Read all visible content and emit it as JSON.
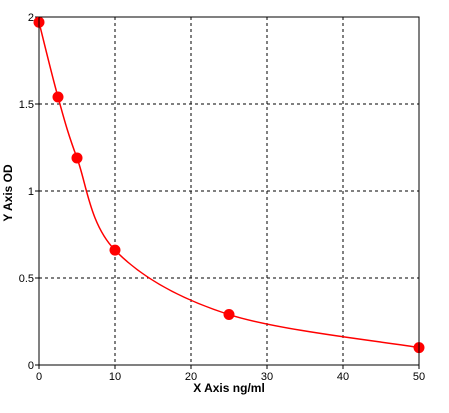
{
  "chart_data": {
    "type": "scatter",
    "title": "",
    "xlabel": "X Axis ng/ml",
    "ylabel": "Y Axis OD",
    "xlim": [
      0,
      50
    ],
    "ylim": [
      0,
      2
    ],
    "x_ticks": [
      0,
      10,
      20,
      30,
      40,
      50
    ],
    "x_tick_labels": [
      "0",
      "10",
      "20",
      "30",
      "40",
      "50"
    ],
    "y_ticks": [
      0,
      0.5,
      1,
      1.5,
      2
    ],
    "y_tick_labels": [
      "0",
      "0.5",
      "1",
      "1.5",
      "2"
    ],
    "grid": true,
    "legend": "none",
    "series": [
      {
        "x": [
          0,
          2.5,
          5,
          10,
          25,
          50
        ],
        "y": [
          1.97,
          1.54,
          1.19,
          0.66,
          0.29,
          0.1
        ],
        "color": "#ff0000",
        "fit": "smooth"
      }
    ]
  }
}
